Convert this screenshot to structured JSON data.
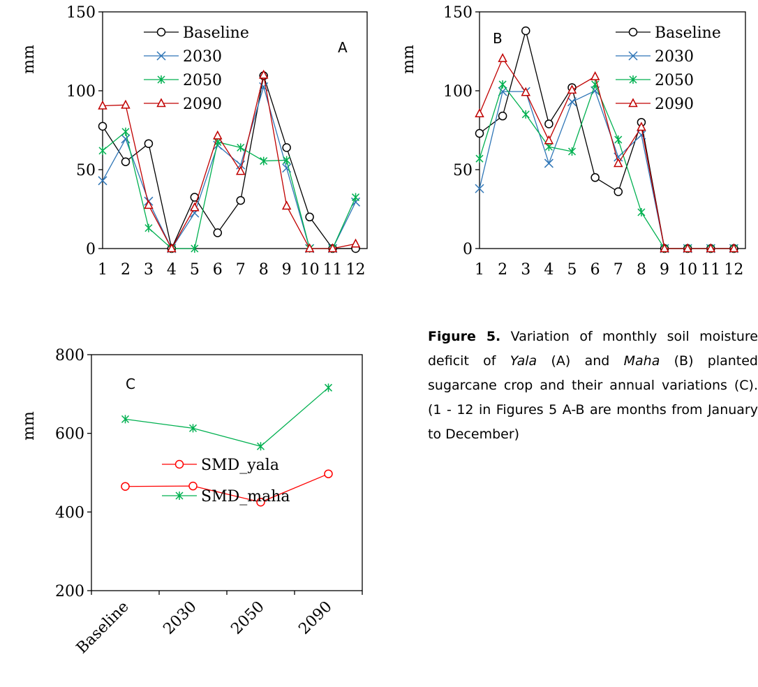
{
  "colors": {
    "Baseline": "#000000",
    "2030": "#2E75B6",
    "2050": "#00B050",
    "2090": "#C00000",
    "SMD_yala": "#FF0000",
    "SMD_maha": "#00B050"
  },
  "chart_data": [
    {
      "panel": "A",
      "type": "line",
      "ylabel": "mm",
      "ylim": [
        0,
        150
      ],
      "yticks": [
        0,
        50,
        100,
        150
      ],
      "x": [
        "1",
        "2",
        "3",
        "4",
        "5",
        "6",
        "7",
        "8",
        "9",
        "10",
        "11",
        "12"
      ],
      "legend": "top-left",
      "series": [
        {
          "name": "Baseline",
          "marker": "circle",
          "values": [
            77.5,
            55,
            66.5,
            0,
            32.5,
            10,
            30.5,
            109.5,
            64,
            20,
            0,
            0
          ]
        },
        {
          "name": "2030",
          "marker": "x",
          "values": [
            43,
            69.5,
            30,
            0,
            22.5,
            65.5,
            53,
            102.5,
            51,
            0,
            0,
            29.5
          ]
        },
        {
          "name": "2050",
          "marker": "asterisk",
          "values": [
            62,
            74,
            13,
            0,
            0,
            67.5,
            64,
            55.5,
            56,
            0,
            0,
            32.5
          ]
        },
        {
          "name": "2090",
          "marker": "triangle",
          "values": [
            90.5,
            91,
            27.5,
            0,
            26,
            71.5,
            49,
            110,
            27,
            0,
            0,
            3
          ]
        }
      ]
    },
    {
      "panel": "B",
      "type": "line",
      "ylabel": "mm",
      "ylim": [
        0,
        150
      ],
      "yticks": [
        0,
        50,
        100,
        150
      ],
      "x": [
        "1",
        "2",
        "3",
        "4",
        "5",
        "6",
        "7",
        "8",
        "9",
        "10",
        "11",
        "12"
      ],
      "legend": "top-right",
      "series": [
        {
          "name": "Baseline",
          "marker": "circle",
          "values": [
            73,
            84,
            138,
            79,
            102,
            45,
            36,
            80,
            0,
            0,
            0,
            0
          ]
        },
        {
          "name": "2030",
          "marker": "x",
          "values": [
            38,
            99.5,
            99.5,
            54,
            93,
            100,
            58,
            72,
            0,
            0,
            0,
            0
          ]
        },
        {
          "name": "2050",
          "marker": "asterisk",
          "values": [
            57,
            104,
            85,
            64.5,
            61.5,
            104,
            69,
            23,
            0,
            0,
            0,
            0
          ]
        },
        {
          "name": "2090",
          "marker": "triangle",
          "values": [
            85.5,
            120.5,
            99,
            68.5,
            100.5,
            109,
            54,
            77,
            0,
            0,
            0,
            0
          ]
        }
      ]
    },
    {
      "panel": "C",
      "type": "line",
      "ylabel": "mm",
      "ylim": [
        200,
        800
      ],
      "yticks": [
        200,
        400,
        600,
        800
      ],
      "categories": [
        "Baseline",
        "2030",
        "2050",
        "2090"
      ],
      "legend": "center-left",
      "series": [
        {
          "name": "SMD_yala",
          "marker": "circle",
          "values": [
            465,
            466,
            425,
            497
          ]
        },
        {
          "name": "SMD_maha",
          "marker": "asterisk",
          "values": [
            636,
            613,
            567,
            716
          ]
        }
      ]
    }
  ],
  "caption": {
    "label": "Figure 5.",
    "text_1": " Variation of monthly soil moisture deficit of ",
    "yala": "Yala",
    "text_2": " (A) and ",
    "maha": "Maha",
    "text_3": " (B) planted sugarcane crop and their annual variations (C). (1 - 12 in Figures 5 A-B are months from January to December)"
  }
}
